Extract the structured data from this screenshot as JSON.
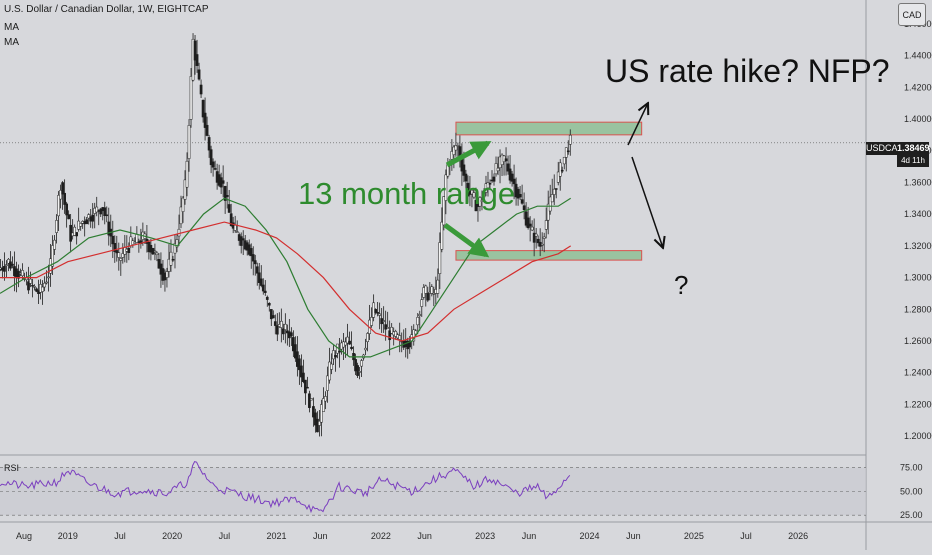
{
  "header": {
    "symbol_line": "U.S. Dollar / Canadian Dollar, 1W, EIGHTCAP",
    "ma1": "MA",
    "ma2": "MA"
  },
  "currency_badge": "CAD",
  "price_badge": {
    "symbol": "USDCAD",
    "price": "1.38469",
    "countdown": "4d 11h"
  },
  "rsi_label": "RSI",
  "annotations": {
    "range_text": "13 month range",
    "headline": "US rate hike? NFP?",
    "question": "?"
  },
  "colors": {
    "background": "#d7d8dc",
    "candle": "#1e1e1e",
    "ma_fast": "#2e7d32",
    "ma_slow": "#d32f2f",
    "rsi": "#7b3fbf",
    "range_box_fill": "#8fbf95",
    "range_box_border": "#d9534f",
    "range_text": "#2e8b2e",
    "arrow_green": "#3a9a3a"
  },
  "chart_data": {
    "type": "line",
    "title": "U.S. Dollar / Canadian Dollar, 1W, EIGHTCAP",
    "ylim": [
      1.19,
      1.47
    ],
    "yticks": [
      "1.46000",
      "1.44000",
      "1.42000",
      "1.40000",
      "1.38000",
      "1.36000",
      "1.34000",
      "1.32000",
      "1.30000",
      "1.28000",
      "1.26000",
      "1.24000",
      "1.22000",
      "1.20000"
    ],
    "xlim": [
      2018.35,
      2026.65
    ],
    "xticks": [
      {
        "t": 2018.58,
        "label": "Aug"
      },
      {
        "t": 2019.0,
        "label": "2019"
      },
      {
        "t": 2019.5,
        "label": "Jul"
      },
      {
        "t": 2020.0,
        "label": "2020"
      },
      {
        "t": 2020.5,
        "label": "Jul"
      },
      {
        "t": 2021.0,
        "label": "2021"
      },
      {
        "t": 2021.42,
        "label": "Jun"
      },
      {
        "t": 2022.0,
        "label": "2022"
      },
      {
        "t": 2022.42,
        "label": "Jun"
      },
      {
        "t": 2023.0,
        "label": "2023"
      },
      {
        "t": 2023.42,
        "label": "Jun"
      },
      {
        "t": 2024.0,
        "label": "2024"
      },
      {
        "t": 2024.42,
        "label": "Jun"
      },
      {
        "t": 2025.0,
        "label": "2025"
      },
      {
        "t": 2025.5,
        "label": "Jul"
      },
      {
        "t": 2026.0,
        "label": "2026"
      }
    ],
    "series": [
      {
        "values": [
          [
            2018.35,
            1.305
          ],
          [
            2018.45,
            1.31
          ],
          [
            2018.58,
            1.3
          ],
          [
            2018.75,
            1.29
          ],
          [
            2018.85,
            1.305
          ],
          [
            2018.95,
            1.36
          ],
          [
            2019.05,
            1.325
          ],
          [
            2019.15,
            1.335
          ],
          [
            2019.25,
            1.34
          ],
          [
            2019.35,
            1.345
          ],
          [
            2019.5,
            1.31
          ],
          [
            2019.6,
            1.32
          ],
          [
            2019.75,
            1.325
          ],
          [
            2019.85,
            1.315
          ],
          [
            2019.95,
            1.3
          ],
          [
            2020.05,
            1.32
          ],
          [
            2020.15,
            1.36
          ],
          [
            2020.22,
            1.45
          ],
          [
            2020.3,
            1.41
          ],
          [
            2020.4,
            1.37
          ],
          [
            2020.5,
            1.36
          ],
          [
            2020.6,
            1.33
          ],
          [
            2020.75,
            1.32
          ],
          [
            2020.85,
            1.3
          ],
          [
            2021.0,
            1.27
          ],
          [
            2021.15,
            1.265
          ],
          [
            2021.3,
            1.23
          ],
          [
            2021.42,
            1.205
          ],
          [
            2021.55,
            1.25
          ],
          [
            2021.7,
            1.26
          ],
          [
            2021.8,
            1.24
          ],
          [
            2021.95,
            1.28
          ],
          [
            2022.1,
            1.265
          ],
          [
            2022.2,
            1.26
          ],
          [
            2022.32,
            1.26
          ],
          [
            2022.42,
            1.29
          ],
          [
            2022.55,
            1.29
          ],
          [
            2022.65,
            1.37
          ],
          [
            2022.75,
            1.385
          ],
          [
            2022.85,
            1.355
          ],
          [
            2022.95,
            1.345
          ],
          [
            2023.05,
            1.36
          ],
          [
            2023.2,
            1.375
          ],
          [
            2023.35,
            1.35
          ],
          [
            2023.45,
            1.33
          ],
          [
            2023.55,
            1.32
          ],
          [
            2023.65,
            1.35
          ],
          [
            2023.75,
            1.37
          ],
          [
            2023.82,
            1.385
          ]
        ]
      },
      {
        "values": [
          [
            2018.35,
            1.29
          ],
          [
            2018.6,
            1.3
          ],
          [
            2018.9,
            1.31
          ],
          [
            2019.2,
            1.325
          ],
          [
            2019.5,
            1.33
          ],
          [
            2019.8,
            1.325
          ],
          [
            2020.05,
            1.32
          ],
          [
            2020.3,
            1.34
          ],
          [
            2020.5,
            1.35
          ],
          [
            2020.7,
            1.345
          ],
          [
            2020.9,
            1.33
          ],
          [
            2021.1,
            1.31
          ],
          [
            2021.3,
            1.28
          ],
          [
            2021.5,
            1.26
          ],
          [
            2021.7,
            1.25
          ],
          [
            2021.9,
            1.25
          ],
          [
            2022.1,
            1.255
          ],
          [
            2022.3,
            1.26
          ],
          [
            2022.5,
            1.28
          ],
          [
            2022.7,
            1.3
          ],
          [
            2022.9,
            1.32
          ],
          [
            2023.1,
            1.33
          ],
          [
            2023.3,
            1.34
          ],
          [
            2023.5,
            1.345
          ],
          [
            2023.7,
            1.345
          ],
          [
            2023.82,
            1.35
          ]
        ]
      },
      {
        "values": [
          [
            2018.35,
            1.3
          ],
          [
            2018.7,
            1.3
          ],
          [
            2019.0,
            1.31
          ],
          [
            2019.3,
            1.315
          ],
          [
            2019.6,
            1.32
          ],
          [
            2019.9,
            1.325
          ],
          [
            2020.2,
            1.33
          ],
          [
            2020.5,
            1.335
          ],
          [
            2020.8,
            1.33
          ],
          [
            2021.0,
            1.325
          ],
          [
            2021.2,
            1.315
          ],
          [
            2021.45,
            1.3
          ],
          [
            2021.7,
            1.28
          ],
          [
            2021.95,
            1.265
          ],
          [
            2022.2,
            1.26
          ],
          [
            2022.45,
            1.265
          ],
          [
            2022.7,
            1.28
          ],
          [
            2022.95,
            1.29
          ],
          [
            2023.2,
            1.3
          ],
          [
            2023.45,
            1.31
          ],
          [
            2023.7,
            1.315
          ],
          [
            2023.82,
            1.32
          ]
        ]
      },
      {
        "values": [
          [
            2018.35,
            60
          ],
          [
            2018.6,
            55
          ],
          [
            2018.9,
            60
          ],
          [
            2019.0,
            72
          ],
          [
            2019.2,
            58
          ],
          [
            2019.45,
            48
          ],
          [
            2019.7,
            52
          ],
          [
            2019.95,
            48
          ],
          [
            2020.15,
            60
          ],
          [
            2020.22,
            80
          ],
          [
            2020.4,
            55
          ],
          [
            2020.7,
            45
          ],
          [
            2020.95,
            38
          ],
          [
            2021.2,
            42
          ],
          [
            2021.42,
            26
          ],
          [
            2021.6,
            55
          ],
          [
            2021.85,
            48
          ],
          [
            2022.0,
            62
          ],
          [
            2022.3,
            50
          ],
          [
            2022.5,
            62
          ],
          [
            2022.7,
            72
          ],
          [
            2022.9,
            55
          ],
          [
            2023.05,
            64
          ],
          [
            2023.3,
            48
          ],
          [
            2023.5,
            55
          ],
          [
            2023.6,
            42
          ],
          [
            2023.75,
            60
          ],
          [
            2023.82,
            68
          ]
        ]
      }
    ],
    "rsi_ylim": [
      20,
      85
    ],
    "rsi_yticks": [
      "75.00",
      "50.00",
      "25.00"
    ],
    "range_zone": {
      "top": 1.398,
      "upper_inner": 1.39,
      "bottom": 1.311,
      "lower_inner": 1.317,
      "t_start": 2022.72,
      "t_end": 2024.5
    }
  }
}
